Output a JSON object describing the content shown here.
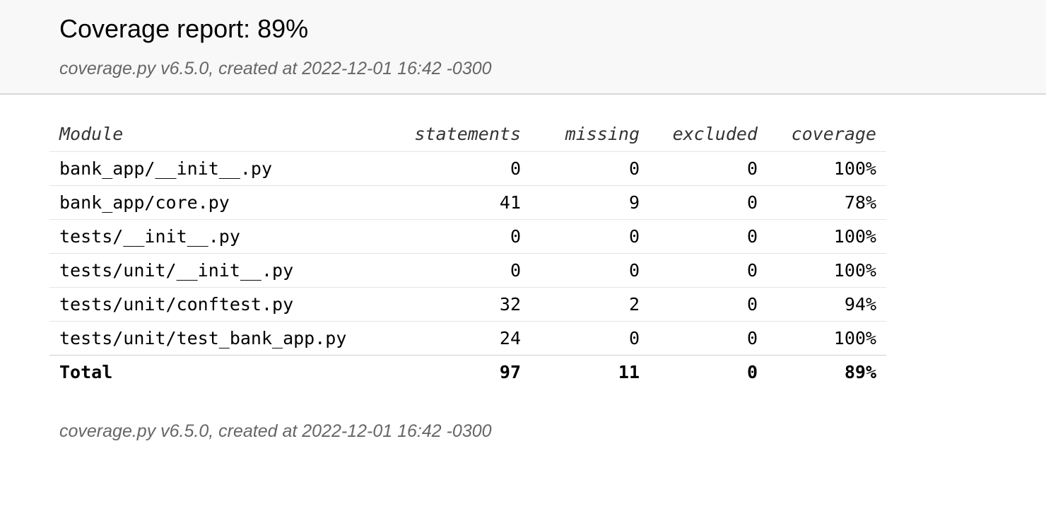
{
  "header": {
    "title": "Coverage report: 89%",
    "meta": "coverage.py v6.5.0, created at 2022-12-01 16:42 -0300"
  },
  "table": {
    "columns": [
      "Module",
      "statements",
      "missing",
      "excluded",
      "coverage"
    ],
    "rows": [
      {
        "module": "bank_app/__init__.py",
        "statements": "0",
        "missing": "0",
        "excluded": "0",
        "coverage": "100%"
      },
      {
        "module": "bank_app/core.py",
        "statements": "41",
        "missing": "9",
        "excluded": "0",
        "coverage": "78%"
      },
      {
        "module": "tests/__init__.py",
        "statements": "0",
        "missing": "0",
        "excluded": "0",
        "coverage": "100%"
      },
      {
        "module": "tests/unit/__init__.py",
        "statements": "0",
        "missing": "0",
        "excluded": "0",
        "coverage": "100%"
      },
      {
        "module": "tests/unit/conftest.py",
        "statements": "32",
        "missing": "2",
        "excluded": "0",
        "coverage": "94%"
      },
      {
        "module": "tests/unit/test_bank_app.py",
        "statements": "24",
        "missing": "0",
        "excluded": "0",
        "coverage": "100%"
      }
    ],
    "total": {
      "module": "Total",
      "statements": "97",
      "missing": "11",
      "excluded": "0",
      "coverage": "89%"
    }
  },
  "footer": {
    "meta": "coverage.py v6.5.0, created at 2022-12-01 16:42 -0300"
  }
}
